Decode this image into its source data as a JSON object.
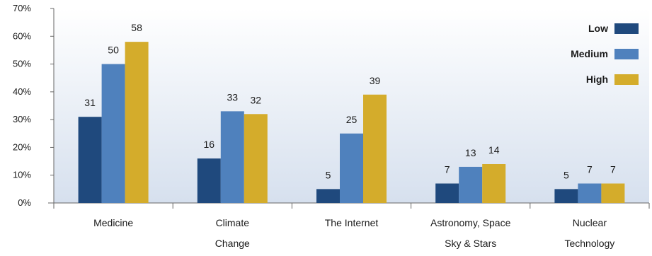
{
  "chart_data": {
    "type": "bar",
    "categories": [
      [
        "Medicine"
      ],
      [
        "Climate",
        "Change"
      ],
      [
        "The Internet"
      ],
      [
        "Astronomy, Space",
        "Sky & Stars"
      ],
      [
        "Nuclear",
        "Technology"
      ]
    ],
    "series": [
      {
        "name": "Low",
        "values": [
          31,
          16,
          5,
          7,
          5
        ],
        "color": "#1f497d"
      },
      {
        "name": "Medium",
        "values": [
          50,
          33,
          25,
          13,
          7
        ],
        "color": "#4f81bd"
      },
      {
        "name": "High",
        "values": [
          58,
          32,
          39,
          14,
          7
        ],
        "color": "#d4ac2b"
      }
    ],
    "y_ticks": [
      "0%",
      "10%",
      "20%",
      "30%",
      "40%",
      "50%",
      "60%",
      "70%"
    ],
    "ylim": [
      0,
      70
    ],
    "legend_position": "top-right",
    "data_labels": true,
    "grid": false
  }
}
